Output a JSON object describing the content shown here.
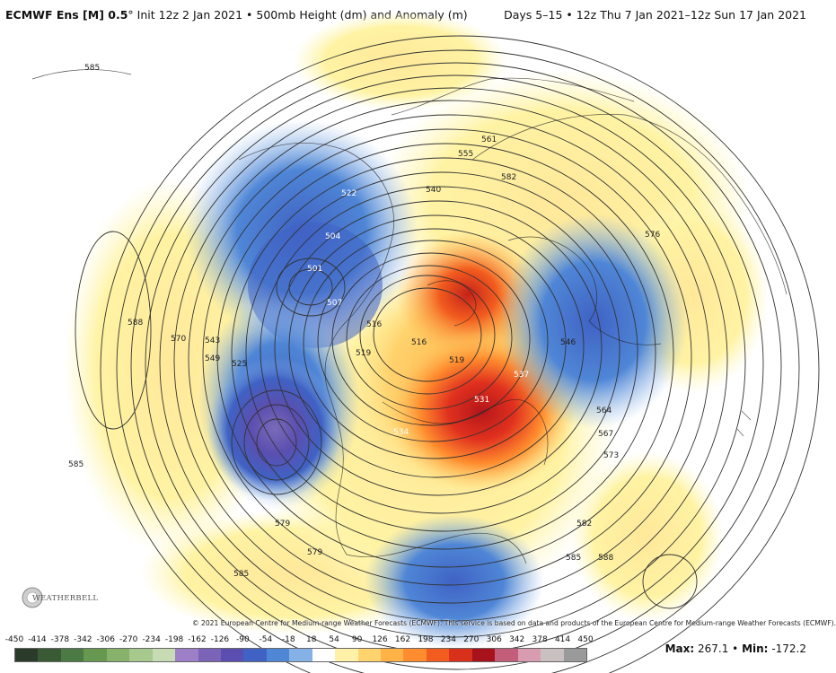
{
  "header": {
    "model": "ECMWF Ens [M] 0.5",
    "degree": "°",
    "init": "Init 12z 2 Jan 2021",
    "field": "500mb Height (dm) and Anomaly (m)",
    "bullet": "•",
    "days": "Days 5–15",
    "range": "12z Thu 7 Jan 2021–12z Sun 17 Jan 2021"
  },
  "copyright": "© 2021 European Centre for Medium-range Weather Forecasts (ECMWF). This service is based on data and products of the European Centre for Medium-range Weather Forecasts (ECMWF).",
  "logo": "WEATHERBELL",
  "legend": {
    "ticks": [
      "-450",
      "-414",
      "-378",
      "-342",
      "-306",
      "-270",
      "-234",
      "-198",
      "-162",
      "-126",
      "-90",
      "-54",
      "-18",
      "18",
      "54",
      "90",
      "126",
      "162",
      "198",
      "234",
      "270",
      "306",
      "342",
      "378",
      "414",
      "450"
    ],
    "colors": [
      "#2b3b2a",
      "#3a5a36",
      "#4c7a45",
      "#66994f",
      "#86b26c",
      "#a8c98e",
      "#c7dcb4",
      "#9c7fc7",
      "#7b63b8",
      "#5a4fb0",
      "#3f62c4",
      "#4f86d6",
      "#86b1e6",
      "#ffffff",
      "#fff1a8",
      "#ffd36e",
      "#ffb347",
      "#ff8c2e",
      "#f25c1e",
      "#d8301a",
      "#a8121a",
      "#c25d7a",
      "#d99bb0",
      "#c9c0c0",
      "#9a9a9a"
    ],
    "max_label": "Max:",
    "max_value": "267.1",
    "sep": "•",
    "min_label": "Min:",
    "min_value": "-172.2"
  },
  "contour_labels": [
    "585",
    "588",
    "570",
    "543",
    "549",
    "525",
    "522",
    "504",
    "501",
    "507",
    "519",
    "516",
    "516",
    "519",
    "555",
    "561",
    "582",
    "540",
    "537",
    "531",
    "534",
    "546",
    "564",
    "567",
    "573",
    "576",
    "582",
    "588",
    "585",
    "579",
    "585",
    "579",
    "585"
  ],
  "colors": {
    "ridge_yellow": "#fff3a3",
    "ridge_orange": "#ffb347",
    "ridge_red": "#e0301e",
    "trough_blue": "#4f86d6",
    "trough_purple": "#6a5ab8",
    "contour": "#333333"
  }
}
